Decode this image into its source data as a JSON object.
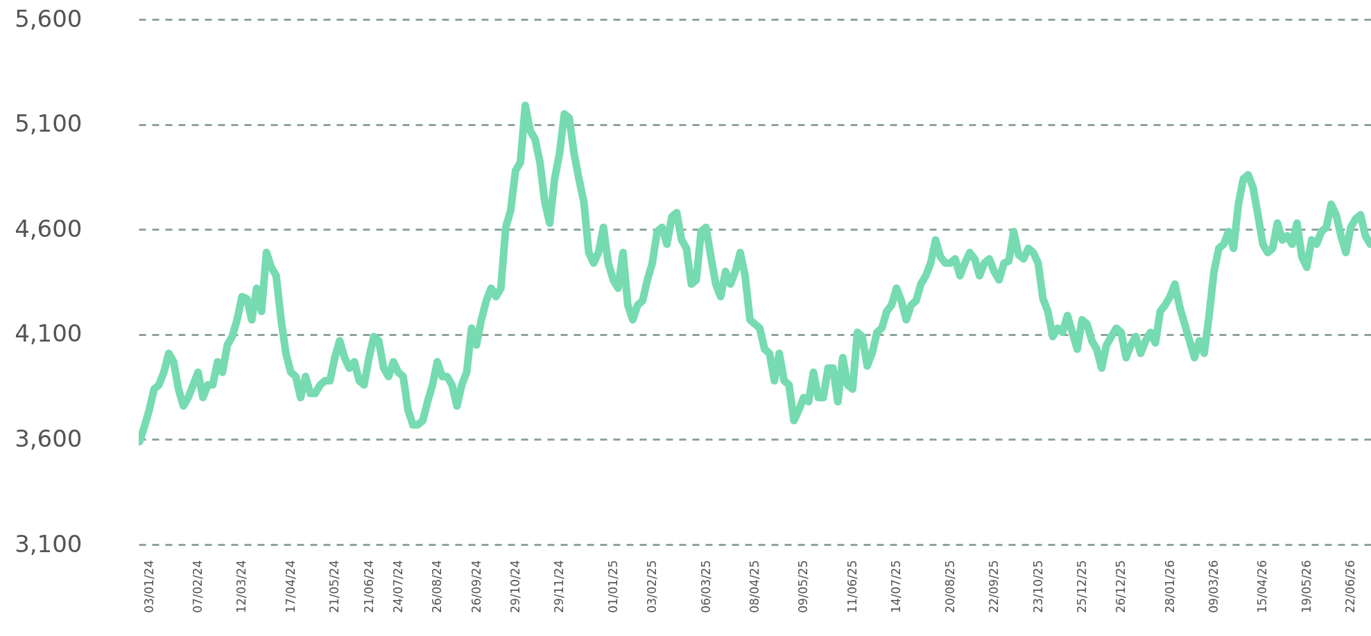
{
  "chart_data": {
    "type": "line",
    "categories": [
      null,
      null,
      "03/01/24",
      null,
      null,
      null,
      null,
      null,
      null,
      null,
      null,
      null,
      "07/02/24",
      null,
      null,
      null,
      null,
      null,
      null,
      null,
      null,
      "12/03/24",
      null,
      null,
      null,
      null,
      null,
      null,
      null,
      null,
      null,
      "17/04/24",
      null,
      null,
      null,
      null,
      null,
      null,
      null,
      null,
      "21/05/24",
      null,
      null,
      null,
      null,
      null,
      null,
      "21/06/24",
      null,
      null,
      null,
      null,
      null,
      "24/07/24",
      null,
      null,
      null,
      null,
      null,
      null,
      null,
      "26/08/24",
      null,
      null,
      null,
      null,
      null,
      null,
      null,
      "26/09/24",
      null,
      null,
      null,
      null,
      null,
      null,
      null,
      "29/10/24",
      null,
      null,
      null,
      null,
      null,
      null,
      null,
      null,
      "29/11/24",
      null,
      null,
      null,
      null,
      null,
      null,
      null,
      null,
      null,
      null,
      "01/01/25",
      null,
      null,
      null,
      null,
      null,
      null,
      null,
      "03/02/25",
      null,
      null,
      null,
      null,
      null,
      null,
      null,
      null,
      null,
      null,
      "06/03/25",
      null,
      null,
      null,
      null,
      null,
      null,
      null,
      null,
      null,
      "08/04/25",
      null,
      null,
      null,
      null,
      null,
      null,
      null,
      null,
      null,
      "09/05/25",
      null,
      null,
      null,
      null,
      null,
      null,
      null,
      null,
      null,
      "11/06/25",
      null,
      null,
      null,
      null,
      null,
      null,
      null,
      null,
      "14/07/25",
      null,
      null,
      null,
      null,
      null,
      null,
      null,
      null,
      null,
      null,
      "20/08/25",
      null,
      null,
      null,
      null,
      null,
      null,
      null,
      null,
      "22/09/25",
      null,
      null,
      null,
      null,
      null,
      null,
      null,
      null,
      "23/10/25",
      null,
      null,
      null,
      null,
      null,
      null,
      null,
      null,
      "25/12/25",
      null,
      null,
      null,
      null,
      null,
      null,
      null,
      "26/12/25",
      null,
      null,
      null,
      null,
      null,
      null,
      null,
      null,
      null,
      "28/01/26",
      null,
      null,
      null,
      null,
      null,
      null,
      null,
      null,
      "09/03/26",
      null,
      null,
      null,
      null,
      null,
      null,
      null,
      null,
      null,
      "15/04/26",
      null,
      null,
      null,
      null,
      null,
      null,
      null,
      null,
      "19/05/26",
      null,
      null,
      null,
      null,
      null,
      null,
      null,
      null,
      "22/06/26",
      null,
      null,
      null,
      null
    ],
    "ylim": [
      3100,
      5600
    ],
    "yticks": [
      {
        "value": 3100,
        "label": "3,100"
      },
      {
        "value": 3600,
        "label": "3,600"
      },
      {
        "value": 4100,
        "label": "4,100"
      },
      {
        "value": 4600,
        "label": "4,600"
      },
      {
        "value": 5100,
        "label": "5,100"
      },
      {
        "value": 5600,
        "label": "5,600"
      }
    ],
    "grid": "y",
    "series": [
      {
        "color": "#76dbb0",
        "values": [
          3590,
          3660,
          3740,
          3840,
          3860,
          3920,
          4010,
          3970,
          3840,
          3760,
          3800,
          3860,
          3920,
          3800,
          3860,
          3860,
          3970,
          3920,
          4050,
          4090,
          4170,
          4280,
          4270,
          4170,
          4320,
          4210,
          4490,
          4420,
          4380,
          4170,
          4010,
          3920,
          3900,
          3800,
          3900,
          3820,
          3820,
          3860,
          3880,
          3880,
          3990,
          4070,
          3990,
          3940,
          3970,
          3880,
          3860,
          3990,
          4090,
          4070,
          3940,
          3900,
          3970,
          3920,
          3900,
          3740,
          3670,
          3670,
          3690,
          3780,
          3860,
          3970,
          3900,
          3900,
          3860,
          3760,
          3860,
          3920,
          4130,
          4050,
          4170,
          4260,
          4320,
          4280,
          4320,
          4610,
          4690,
          4880,
          4920,
          5190,
          5070,
          5030,
          4920,
          4730,
          4630,
          4840,
          4960,
          5150,
          5130,
          4960,
          4840,
          4730,
          4490,
          4440,
          4490,
          4610,
          4440,
          4360,
          4320,
          4490,
          4240,
          4170,
          4240,
          4260,
          4360,
          4440,
          4590,
          4610,
          4530,
          4660,
          4680,
          4550,
          4510,
          4340,
          4360,
          4590,
          4610,
          4470,
          4340,
          4280,
          4400,
          4340,
          4400,
          4490,
          4380,
          4170,
          4150,
          4130,
          4030,
          4010,
          3880,
          4010,
          3880,
          3860,
          3690,
          3740,
          3800,
          3780,
          3920,
          3800,
          3800,
          3940,
          3940,
          3780,
          3990,
          3860,
          3840,
          4110,
          4090,
          3950,
          4010,
          4110,
          4130,
          4210,
          4240,
          4320,
          4260,
          4170,
          4240,
          4260,
          4340,
          4380,
          4440,
          4550,
          4470,
          4440,
          4440,
          4460,
          4380,
          4440,
          4490,
          4460,
          4380,
          4440,
          4460,
          4400,
          4360,
          4440,
          4450,
          4590,
          4480,
          4460,
          4510,
          4490,
          4440,
          4270,
          4210,
          4090,
          4130,
          4110,
          4190,
          4110,
          4030,
          4170,
          4150,
          4070,
          4030,
          3940,
          4050,
          4090,
          4130,
          4110,
          3990,
          4050,
          4090,
          4010,
          4070,
          4110,
          4060,
          4210,
          4240,
          4280,
          4340,
          4230,
          4150,
          4070,
          3990,
          4070,
          4010,
          4190,
          4400,
          4510,
          4530,
          4590,
          4510,
          4720,
          4840,
          4860,
          4800,
          4670,
          4530,
          4490,
          4510,
          4630,
          4550,
          4570,
          4530,
          4630,
          4470,
          4420,
          4550,
          4530,
          4590,
          4610,
          4720,
          4670,
          4570,
          4490,
          4610,
          4650,
          4670,
          4570,
          4530
        ]
      }
    ]
  }
}
